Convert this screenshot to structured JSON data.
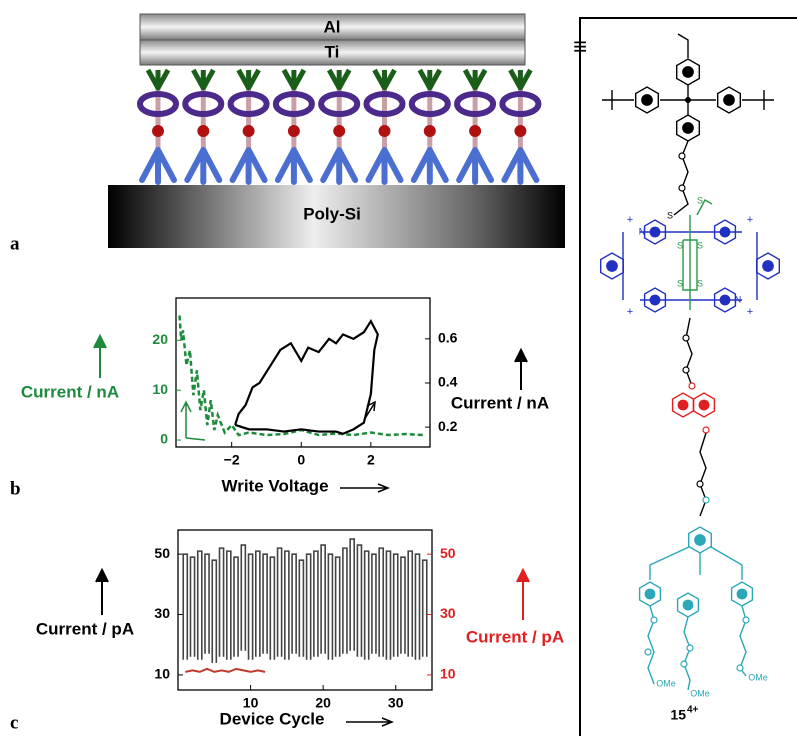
{
  "panel_a": {
    "label": "a",
    "top_layer": "Al",
    "middle_layer": "Ti",
    "bottom_layer": "Poly-Si"
  },
  "panel_b": {
    "label": "b",
    "x_label": "Write Voltage",
    "y_label": "Current / nA",
    "y2_label": "Current / nA",
    "xlim": [
      -3.6,
      3.7
    ],
    "xticks": [
      {
        "value": -2,
        "label": "−2"
      },
      0,
      2
    ],
    "ylim": [
      -1.4,
      28.5
    ],
    "yticks": [
      0,
      10,
      20
    ],
    "y2lim": [
      0.11,
      0.785
    ],
    "y2ticks": [
      0.2,
      0.4,
      0.6
    ],
    "series": [
      {
        "color": "#1e8a3c",
        "x": [
          -3.5,
          -3.45,
          -3.4,
          -3.3,
          -3.2,
          -3.1,
          -3.0,
          -2.9,
          -2.8,
          -2.7,
          -2.6,
          -2.5,
          -2.4,
          -2.2,
          -2.0,
          -1.8,
          -1.5,
          -1,
          -0.5,
          0,
          0.5,
          1,
          1.5,
          2,
          2.5,
          3,
          3.5
        ],
        "values": [
          25,
          20,
          22,
          15,
          18,
          9,
          14,
          6,
          10,
          3,
          8,
          2,
          5,
          1.5,
          3,
          1,
          1.5,
          1,
          1.2,
          2,
          1,
          1.3,
          1,
          1.5,
          1,
          1.2,
          1
        ]
      },
      {
        "color": "#000000",
        "axis": "y2",
        "x": [
          -1.9,
          -1.5,
          -1,
          -0.5,
          0,
          0.5,
          1,
          1.2,
          1.5,
          1.8,
          2.0,
          2.1,
          2.2,
          2.0,
          1.8,
          1.5,
          1.2,
          1,
          0.8,
          0.5,
          0.2,
          0,
          -0.3,
          -0.6,
          -0.8,
          -1,
          -1.2,
          -1.4,
          -1.6,
          -1.8,
          -1.9
        ],
        "values": [
          0.21,
          0.19,
          0.19,
          0.18,
          0.19,
          0.18,
          0.18,
          0.17,
          0.19,
          0.22,
          0.35,
          0.55,
          0.62,
          0.68,
          0.63,
          0.6,
          0.62,
          0.58,
          0.6,
          0.54,
          0.56,
          0.5,
          0.58,
          0.55,
          0.5,
          0.45,
          0.4,
          0.38,
          0.3,
          0.26,
          0.21
        ]
      }
    ]
  },
  "panel_c": {
    "label": "c",
    "x_label": "Device Cycle",
    "y_label": "Current / pA",
    "y2_label": "Current / pA",
    "xlim": [
      0,
      35
    ],
    "xticks": [
      10,
      20,
      30
    ],
    "ylim": [
      5,
      58
    ],
    "yticks": [
      10,
      30,
      50
    ],
    "y2lim": [
      5,
      58
    ],
    "y2ticks": [
      10,
      30,
      50
    ],
    "cycles": [
      1,
      2,
      3,
      4,
      5,
      6,
      7,
      8,
      9,
      10,
      11,
      12,
      13,
      14,
      15,
      16,
      17,
      18,
      19,
      20,
      21,
      22,
      23,
      24,
      25,
      26,
      27,
      28,
      29,
      30,
      31,
      32,
      33,
      34
    ],
    "series": [
      {
        "color": "#444444",
        "values": [
          50,
          49,
          51,
          50,
          48,
          52,
          51,
          49,
          53,
          50,
          51,
          50,
          49,
          52,
          51,
          50,
          48,
          50,
          51,
          53,
          50,
          49,
          52,
          55,
          53,
          51,
          50,
          52,
          51,
          50,
          49,
          51,
          50,
          48
        ]
      },
      {
        "color": "#444444",
        "values": [
          15,
          16,
          15,
          17,
          14,
          16,
          15,
          16,
          18,
          15,
          16,
          17,
          15,
          16,
          15,
          17,
          16,
          15,
          16,
          17,
          15,
          16,
          17,
          18,
          16,
          15,
          17,
          16,
          15,
          16,
          17,
          16,
          15,
          16
        ]
      },
      {
        "color": "#c0392b",
        "axis": "y2",
        "x": [
          1,
          2,
          3,
          4,
          5,
          6,
          7,
          8,
          9,
          10,
          11,
          12
        ],
        "values": [
          11,
          11.5,
          11,
          12,
          11,
          11.5,
          11,
          12,
          11.5,
          11,
          11.5,
          11
        ]
      }
    ]
  },
  "structure": {
    "equiv": "≡",
    "compound": "15",
    "charge": "4+",
    "sulfur": [
      "S",
      "S",
      "S",
      "S",
      "S",
      "S"
    ],
    "nitrogen": [
      "N",
      "N"
    ],
    "plus": [
      "+",
      "+",
      "+",
      "+"
    ],
    "methoxy": [
      "OMe",
      "OMe",
      "OMe"
    ]
  }
}
